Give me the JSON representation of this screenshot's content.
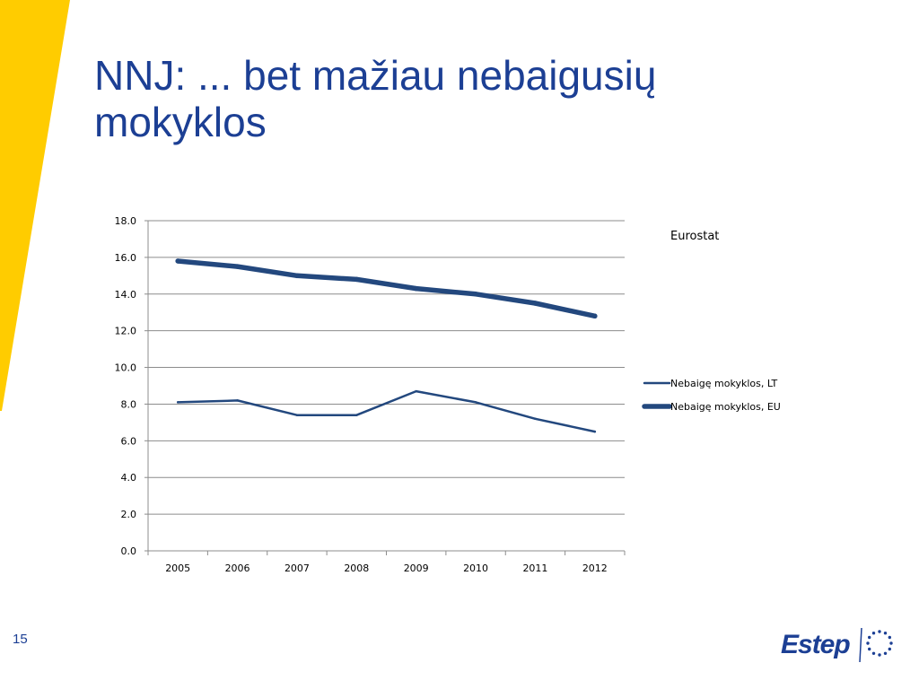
{
  "slide": {
    "title": "NNJ: ... bet mažiau nebaigusių mokyklos",
    "page_number": "15"
  },
  "logo": {
    "text": "Estep"
  },
  "colors": {
    "title": "#1c3f94",
    "stripe": "#ffcc00",
    "series": "#23487e",
    "grid": "#8c8c8c"
  },
  "chart_data": {
    "type": "line",
    "title": "",
    "source_note": "Eurostat",
    "x": [
      "2005",
      "2006",
      "2007",
      "2008",
      "2009",
      "2010",
      "2011",
      "2012"
    ],
    "ylim": [
      0,
      18
    ],
    "yticks": [
      "0.0",
      "2.0",
      "4.0",
      "6.0",
      "8.0",
      "10.0",
      "12.0",
      "14.0",
      "16.0",
      "18.0"
    ],
    "grid": true,
    "legend_position": "right",
    "series": [
      {
        "name": "Nebaigę mokyklos, LT",
        "values": [
          8.1,
          8.2,
          7.4,
          7.4,
          8.7,
          8.1,
          7.2,
          6.5
        ],
        "line_width": "thin"
      },
      {
        "name": "Nebaigę mokyklos, EU",
        "values": [
          15.8,
          15.5,
          15.0,
          14.8,
          14.3,
          14.0,
          13.5,
          12.8
        ],
        "line_width": "thick"
      }
    ]
  }
}
